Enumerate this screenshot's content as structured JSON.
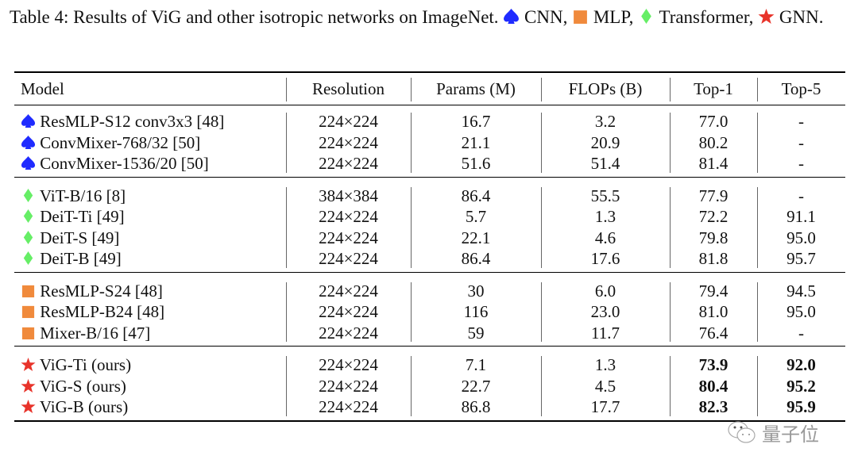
{
  "caption": {
    "text": "Table 4: Results of ViG and other isotropic networks on ImageNet.",
    "legend": [
      {
        "icon": "spade-icon",
        "color": "#1f2bff",
        "label": "CNN,"
      },
      {
        "icon": "square-icon",
        "color": "#f08a3c",
        "label": "MLP,"
      },
      {
        "icon": "diamond-icon",
        "color": "#66ee66",
        "label": "Transformer,"
      },
      {
        "icon": "star-icon",
        "color": "#e8332a",
        "label": "GNN."
      }
    ]
  },
  "table": {
    "headers": [
      "Model",
      "Resolution",
      "Params (M)",
      "FLOPs (B)",
      "Top-1",
      "Top-5"
    ],
    "groups": [
      {
        "icon": "spade-icon",
        "rows": [
          {
            "cells": [
              "ResMLP-S12 conv3x3 [48]",
              "224×224",
              "16.7",
              "3.2",
              "77.0",
              "-"
            ]
          },
          {
            "cells": [
              "ConvMixer-768/32 [50]",
              "224×224",
              "21.1",
              "20.9",
              "80.2",
              "-"
            ]
          },
          {
            "cells": [
              "ConvMixer-1536/20 [50]",
              "224×224",
              "51.6",
              "51.4",
              "81.4",
              "-"
            ]
          }
        ]
      },
      {
        "icon": "diamond-icon",
        "rows": [
          {
            "cells": [
              "ViT-B/16 [8]",
              "384×384",
              "86.4",
              "55.5",
              "77.9",
              "-"
            ]
          },
          {
            "cells": [
              "DeiT-Ti [49]",
              "224×224",
              "5.7",
              "1.3",
              "72.2",
              "91.1"
            ]
          },
          {
            "cells": [
              "DeiT-S [49]",
              "224×224",
              "22.1",
              "4.6",
              "79.8",
              "95.0"
            ]
          },
          {
            "cells": [
              "DeiT-B [49]",
              "224×224",
              "86.4",
              "17.6",
              "81.8",
              "95.7"
            ]
          }
        ]
      },
      {
        "icon": "square-icon",
        "rows": [
          {
            "cells": [
              "ResMLP-S24 [48]",
              "224×224",
              "30",
              "6.0",
              "79.4",
              "94.5"
            ]
          },
          {
            "cells": [
              "ResMLP-B24 [48]",
              "224×224",
              "116",
              "23.0",
              "81.0",
              "95.0"
            ]
          },
          {
            "cells": [
              "Mixer-B/16 [47]",
              "224×224",
              "59",
              "11.7",
              "76.4",
              "-"
            ]
          }
        ]
      },
      {
        "icon": "star-icon",
        "bold_top": true,
        "rows": [
          {
            "cells": [
              "ViG-Ti (ours)",
              "224×224",
              "7.1",
              "1.3",
              "73.9",
              "92.0"
            ]
          },
          {
            "cells": [
              "ViG-S (ours)",
              "224×224",
              "22.7",
              "4.5",
              "80.4",
              "95.2"
            ]
          },
          {
            "cells": [
              "ViG-B (ours)",
              "224×224",
              "86.8",
              "17.7",
              "82.3",
              "95.9"
            ]
          }
        ]
      }
    ]
  },
  "watermark": {
    "text": "量子位",
    "icon": "wechat-icon"
  }
}
